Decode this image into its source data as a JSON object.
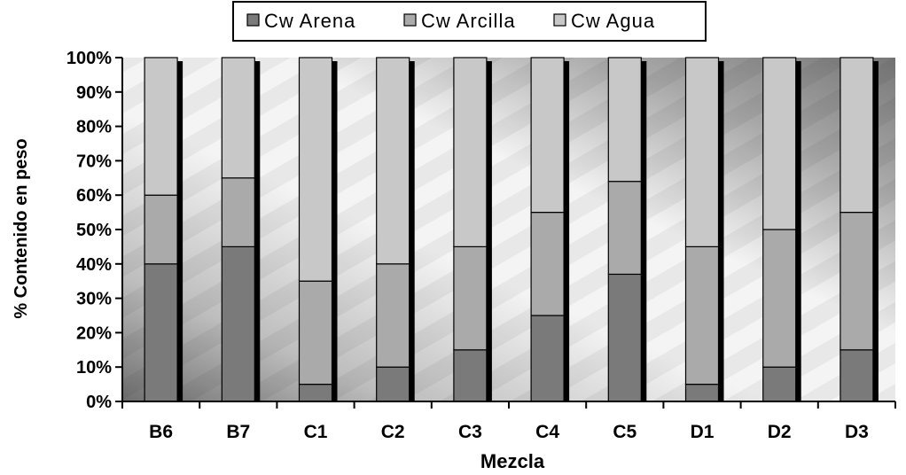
{
  "chart_data": {
    "type": "bar",
    "stacked": true,
    "normalized": true,
    "title": "",
    "xlabel": "Mezcla",
    "ylabel": "% Contenido en peso",
    "ylim": [
      0,
      100
    ],
    "categories": [
      "B6",
      "B7",
      "C1",
      "C2",
      "C3",
      "C4",
      "C5",
      "D1",
      "D2",
      "D3"
    ],
    "y_ticks": [
      "0%",
      "10%",
      "20%",
      "30%",
      "40%",
      "50%",
      "60%",
      "70%",
      "80%",
      "90%",
      "100%"
    ],
    "series": [
      {
        "name": "Cw  Arena",
        "color": "#7a7a7a",
        "values": [
          40,
          45,
          5,
          10,
          15,
          25,
          37,
          5,
          10,
          15
        ]
      },
      {
        "name": "Cw Arcilla",
        "color": "#aaaaaa",
        "values": [
          20,
          20,
          30,
          30,
          30,
          30,
          27,
          40,
          40,
          40
        ]
      },
      {
        "name": "Cw Agua",
        "color": "#c8c8c8",
        "values": [
          40,
          35,
          65,
          60,
          55,
          45,
          36,
          55,
          50,
          45
        ]
      }
    ],
    "legend_position": "top",
    "grid": false
  }
}
